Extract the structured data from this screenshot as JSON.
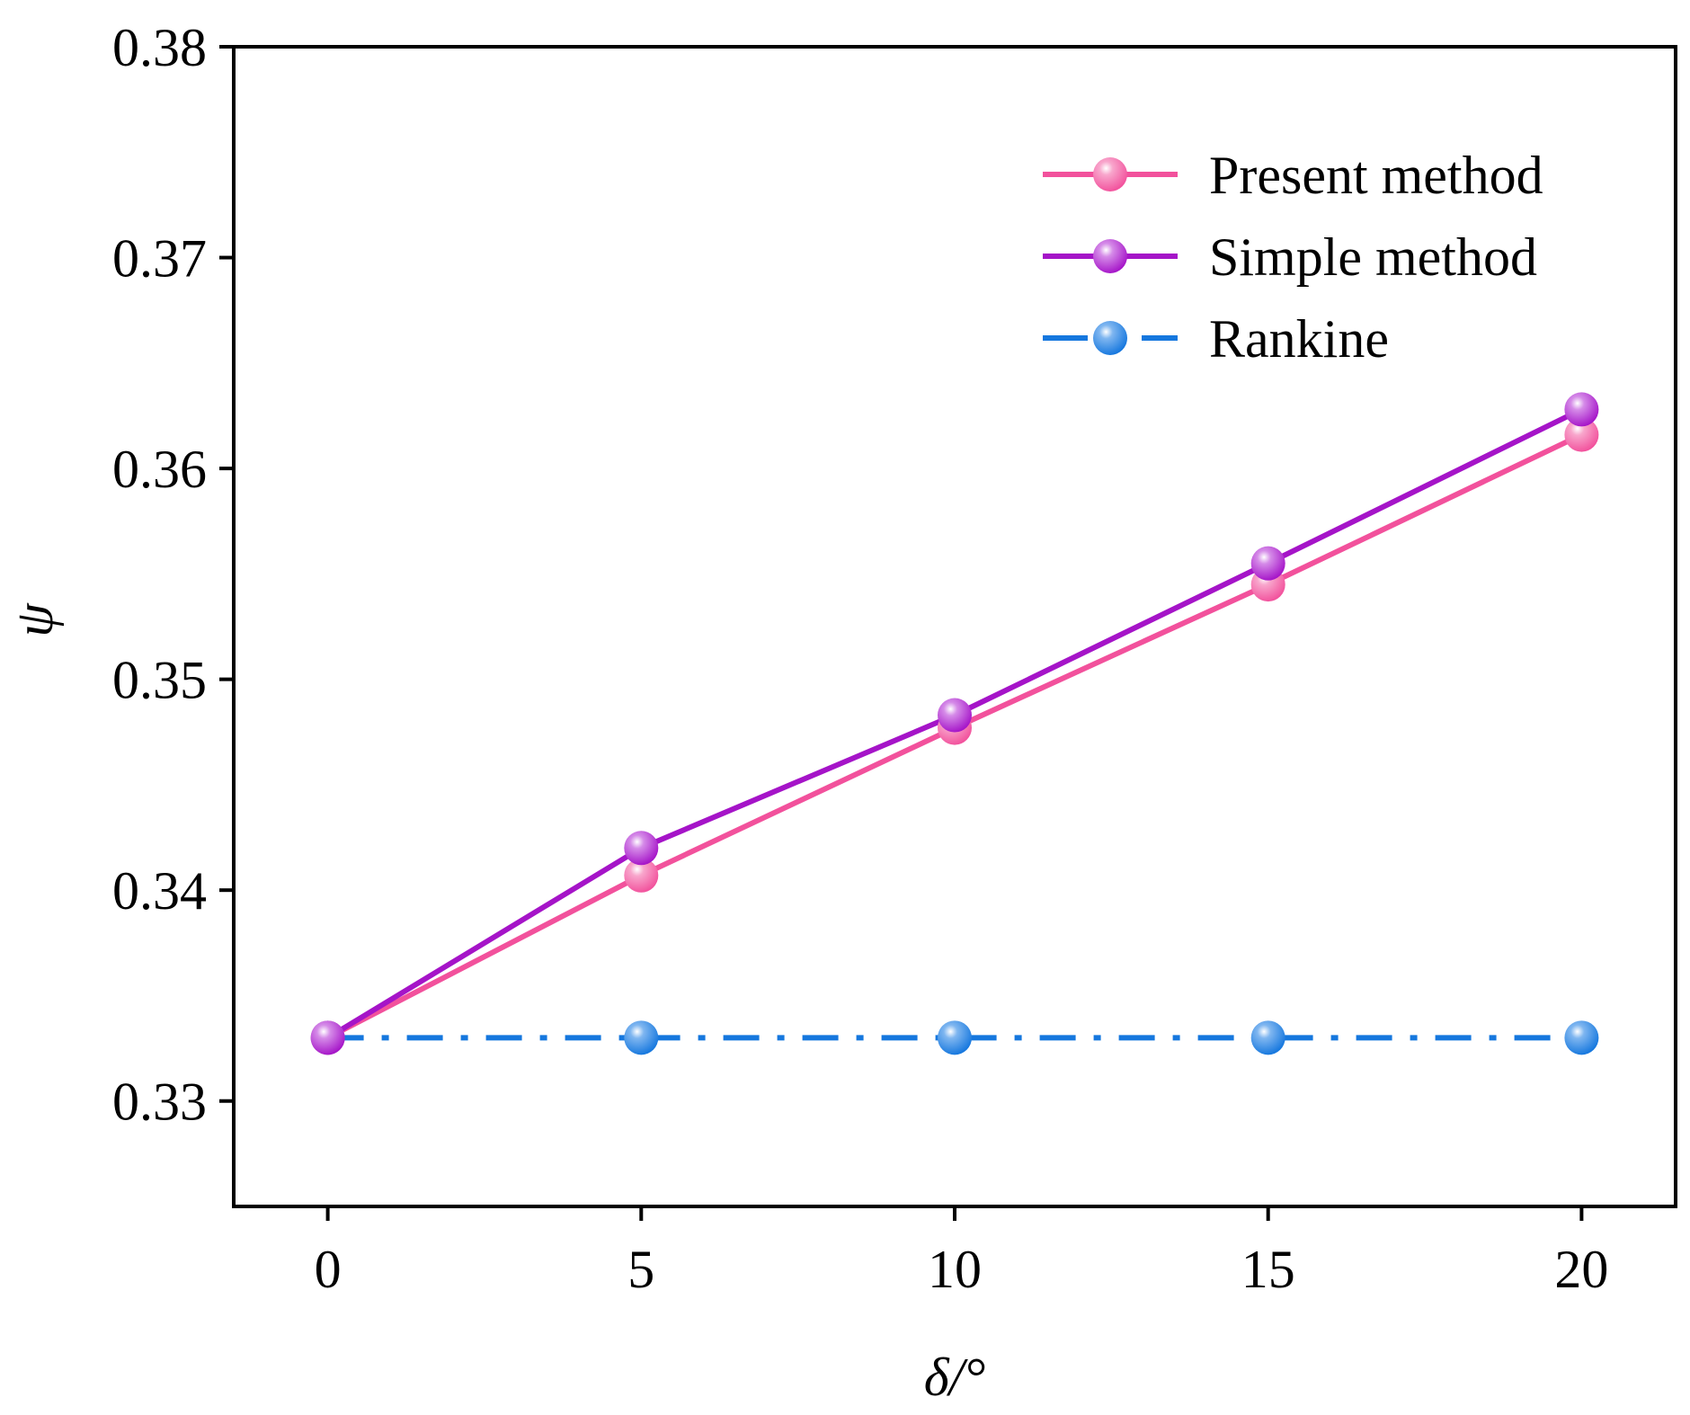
{
  "chart_data": {
    "type": "line",
    "title": "",
    "xlabel": "δ/°",
    "ylabel": "ψ",
    "xlim": [
      -1.5,
      21.5
    ],
    "ylim": [
      0.325,
      0.38
    ],
    "xticks": [
      0,
      5,
      10,
      15,
      20
    ],
    "xtick_labels": [
      "0",
      "5",
      "10",
      "15",
      "20"
    ],
    "yticks": [
      0.33,
      0.34,
      0.35,
      0.36,
      0.37,
      0.38
    ],
    "ytick_labels": [
      "0.33",
      "0.34",
      "0.35",
      "0.36",
      "0.37",
      "0.38"
    ],
    "grid": false,
    "legend_position": "top-right",
    "x": [
      0,
      5,
      10,
      15,
      20
    ],
    "series": [
      {
        "name": "Present method",
        "values": [
          0.333,
          0.3407,
          0.3477,
          0.3545,
          0.3616
        ],
        "color": "#f2519c",
        "line_style": "solid",
        "marker": "circle"
      },
      {
        "name": "Simple method",
        "values": [
          0.333,
          0.342,
          0.3483,
          0.3555,
          0.3628
        ],
        "color": "#a514c8",
        "line_style": "solid",
        "marker": "circle"
      },
      {
        "name": "Rankine",
        "values": [
          0.333,
          0.333,
          0.333,
          0.333,
          0.333
        ],
        "color": "#1577de",
        "line_style": "dash-dot",
        "marker": "circle"
      }
    ]
  }
}
